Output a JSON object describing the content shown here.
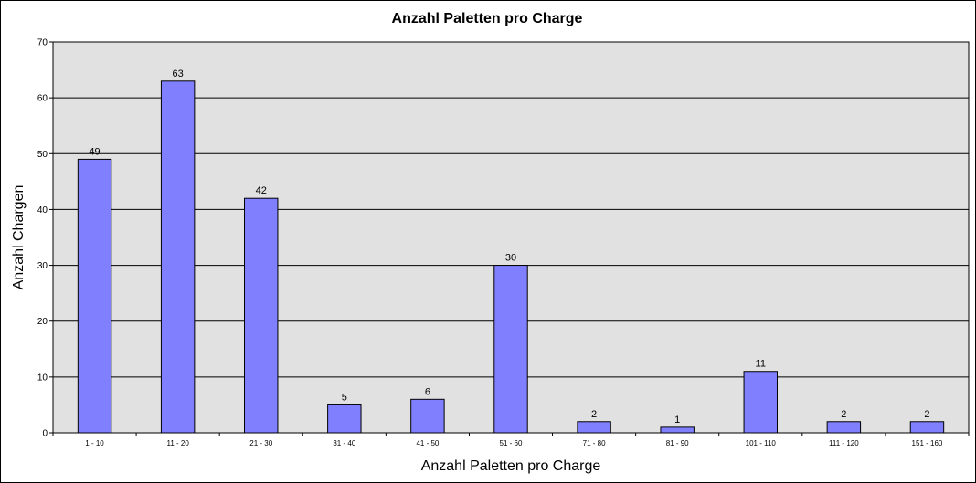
{
  "chart_data": {
    "type": "bar",
    "title": "Anzahl Paletten pro Charge",
    "xlabel": "Anzahl Paletten pro Charge",
    "ylabel": "Anzahl Chargen",
    "categories": [
      "1 - 10",
      "11 - 20",
      "21 - 30",
      "31 - 40",
      "41 - 50",
      "51 - 60",
      "71 - 80",
      "81 - 90",
      "101 - 110",
      "111 - 120",
      "151 - 160"
    ],
    "values": [
      49,
      63,
      42,
      5,
      6,
      30,
      2,
      1,
      11,
      2,
      2
    ],
    "ylim": [
      0,
      70
    ],
    "yticks": [
      0,
      10,
      20,
      30,
      40,
      50,
      60,
      70
    ],
    "grid": true,
    "legend": "none",
    "colors": {
      "bar_fill": "#8080ff",
      "bar_stroke": "#000000",
      "plot_background": "#e1e1e1",
      "gridline": "#000000"
    }
  }
}
